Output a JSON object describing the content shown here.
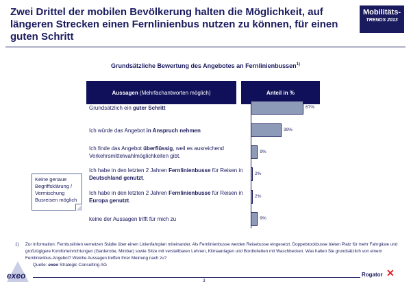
{
  "header": {
    "title": "Zwei Drittel der mobilen Bevölkerung halten die Möglichkeit, auf längeren Strecken einen Fernlinienbus nutzen zu können, für einen guten Schritt",
    "badge_line1": "Mobilitäts-",
    "badge_line2": "TRENDS 2013"
  },
  "chart_data": {
    "type": "bar",
    "orientation": "horizontal",
    "title": "Grundsätzliche Bewertung des Angebotes an Fernlinienbussen",
    "title_sup": "1)",
    "column_headers": {
      "left_bold": "Aussagen",
      "left_rest": " (Mehrfachantworten möglich)",
      "right": "Anteil in %"
    },
    "categories": [
      {
        "pre": "Grundsätzlich ein ",
        "bold": "guter Schritt",
        "post": ""
      },
      {
        "pre": "Ich würde das Angebot ",
        "bold": "in Anspruch nehmen",
        "post": ""
      },
      {
        "pre": "Ich finde das Angebot ",
        "bold": "überflüssig",
        "post": ", weil es ausreichend Verkehrsmittelwahlmöglichkeiten gibt."
      },
      {
        "pre": "Ich habe in den letzten 2 Jahren ",
        "bold": "Fernlinienbusse",
        "post": " für Reisen in ",
        "bold2": "Deutschland genutzt",
        "post2": "."
      },
      {
        "pre": "Ich habe in den letzten 2 Jahren ",
        "bold": "Fernlinienbusse",
        "post": " für Reisen in ",
        "bold2": "Europa genutzt",
        "post2": "."
      },
      {
        "pre": "keine der Aussagen trifft für mich zu",
        "bold": "",
        "post": ""
      }
    ],
    "values": [
      67,
      39,
      9,
      2,
      2,
      9
    ],
    "value_labels": [
      "67%",
      "39%",
      "9%",
      "2%",
      "2%",
      "9%"
    ],
    "bar_color": "#8e9bb8",
    "unit": "%"
  },
  "note": "Keine genaue Begriffsklärung / Vermischung Busreisen möglich",
  "footnote": {
    "number": "1)",
    "text": "Zur Information: Fernbuslinien vernetzen Städte über einen Linienfahrplan miteinander. Als Fernlinienbusse werden Reisebusse eingesetzt. Doppelstockbusse bieten Platz für mehr Fahrgäste und großzügigere Komforteinrichtungen (Garderobe, Minibar) sowie Sitze mit verstellbaren Lehnen, Klimaanlagen und Bordtoiletten mit Waschbecken. Was halten Sie grundsätzlich von einem Fernlinienbus-Angebot? Welche Aussagen treffen Ihrer Meinung nach zu?"
  },
  "source": {
    "label": "Quelle: ",
    "brand": "exeo",
    "rest": " Strategic Consulting AG"
  },
  "page_number": "3",
  "logos": {
    "left": "exeo",
    "right": "Rogator"
  }
}
